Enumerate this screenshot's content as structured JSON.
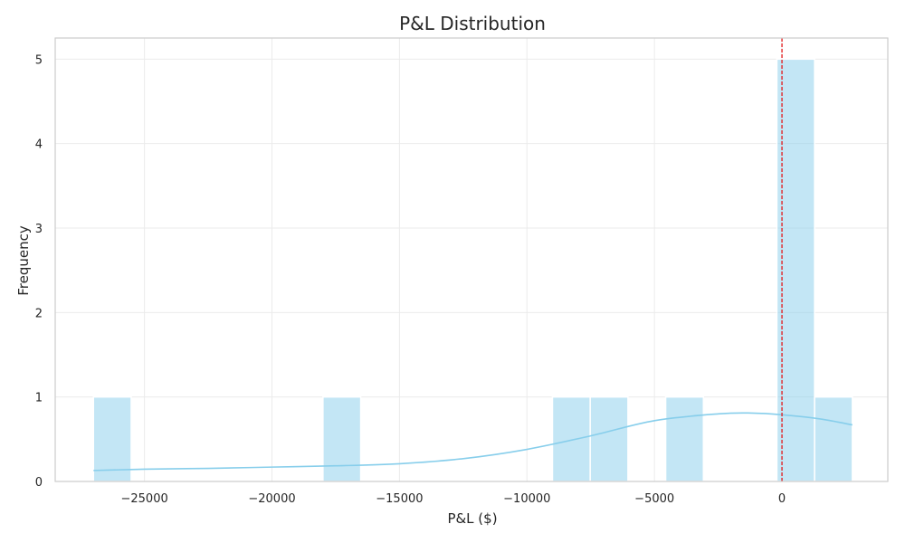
{
  "chart_data": {
    "type": "bar",
    "title": "P&L Distribution",
    "xlabel": "P&L ($)",
    "ylabel": "Frequency",
    "xlim": [
      -28500,
      4150
    ],
    "ylim": [
      0,
      5.25
    ],
    "xticks": [
      -25000,
      -20000,
      -15000,
      -10000,
      -5000,
      0
    ],
    "xtick_labels": [
      "−25000",
      "−20000",
      "−15000",
      "−10000",
      "−5000",
      "0"
    ],
    "yticks": [
      0,
      1,
      2,
      3,
      4,
      5
    ],
    "ytick_labels": [
      "0",
      "1",
      "2",
      "3",
      "4",
      "5"
    ],
    "grid": true,
    "bar_color": "#87ceeb",
    "kde_color": "#87ceeb",
    "reference_line": {
      "x": 0,
      "color": "#e31a1c",
      "style": "dashed"
    },
    "bins": [
      {
        "x0": -27000,
        "x1": -25520,
        "count": 1
      },
      {
        "x0": -18000,
        "x1": -16520,
        "count": 1
      },
      {
        "x0": -9000,
        "x1": -7520,
        "count": 1
      },
      {
        "x0": -7520,
        "x1": -6040,
        "count": 1
      },
      {
        "x0": -4560,
        "x1": -3080,
        "count": 1
      },
      {
        "x0": -200,
        "x1": 1280,
        "count": 5
      },
      {
        "x0": 1280,
        "x1": 2760,
        "count": 1
      }
    ],
    "kde": {
      "x": [
        -27000,
        -25000,
        -22500,
        -20000,
        -17500,
        -15000,
        -12500,
        -10000,
        -7500,
        -5000,
        -2500,
        -1200,
        0,
        1500,
        2760
      ],
      "y": [
        0.13,
        0.145,
        0.155,
        0.17,
        0.185,
        0.21,
        0.27,
        0.38,
        0.54,
        0.72,
        0.8,
        0.81,
        0.79,
        0.74,
        0.67
      ]
    }
  }
}
